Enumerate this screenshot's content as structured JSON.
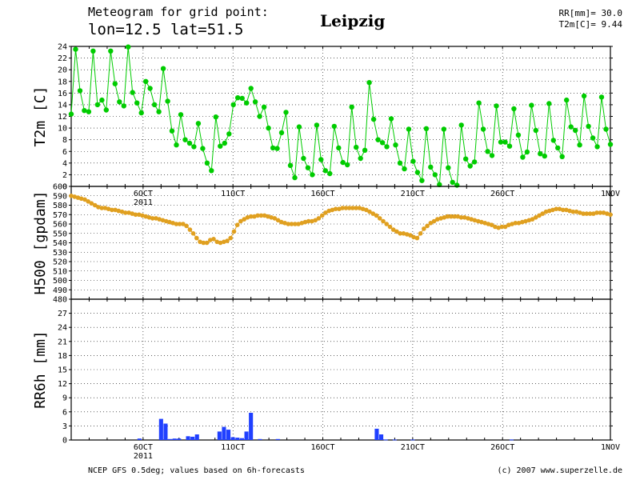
{
  "header": {
    "line1": "Meteogram for grid point:",
    "line2": "lon=12.5 lat=51.5",
    "location": "Leipzig",
    "rr_label": "RR[mm]= 30.0",
    "t2m_label": "T2m[C]= 9.44"
  },
  "footer": {
    "source": "NCEP GFS 0.5deg; values based on 6h-forecasts",
    "copyright": "(c) 2007 www.superzelle.de"
  },
  "colors": {
    "t2m": "#00cc00",
    "h500": "#e0a020",
    "rr6h": "#2040ff",
    "grid": "#000000"
  },
  "chart_data": [
    {
      "type": "line",
      "ylabel": "T2m [C]",
      "ylim": [
        0,
        24
      ],
      "yticks": [
        0,
        2,
        4,
        6,
        8,
        10,
        12,
        14,
        16,
        18,
        20,
        22,
        24
      ],
      "grid": true,
      "xlim": [
        0,
        30
      ],
      "xticks": [
        {
          "x": 4,
          "label": "6OCT",
          "sublabel": "2011"
        },
        {
          "x": 9,
          "label": "11OCT"
        },
        {
          "x": 14,
          "label": "16OCT"
        },
        {
          "x": 19,
          "label": "21OCT"
        },
        {
          "x": 24,
          "label": "26OCT"
        },
        {
          "x": 30,
          "label": "1NOV"
        }
      ],
      "series": [
        {
          "values": [
            12.4,
            23.5,
            16.4,
            13.0,
            12.8,
            23.2,
            14.0,
            14.8,
            13.1,
            23.2,
            17.6,
            14.5,
            13.8,
            23.9,
            16.1,
            14.3,
            12.6,
            18.0,
            16.8,
            14.0,
            12.8,
            20.2,
            14.6,
            9.5,
            7.1,
            12.3,
            8.0,
            7.4,
            6.8,
            10.8,
            6.5,
            4.0,
            2.7,
            11.9,
            6.9,
            7.4,
            9.0,
            14.0,
            15.2,
            15.1,
            14.3,
            16.8,
            14.5,
            12.0,
            13.6,
            10.0,
            6.6,
            6.5,
            9.2,
            12.7,
            3.6,
            1.5,
            10.2,
            4.8,
            3.2,
            2.0,
            10.5,
            4.6,
            2.7,
            2.2,
            10.3,
            6.6,
            4.1,
            3.7,
            13.6,
            6.7,
            4.8,
            6.2,
            17.8,
            11.5,
            8.0,
            7.5,
            6.8,
            11.6,
            7.1,
            4.0,
            3.0,
            9.8,
            4.3,
            2.4,
            1.0,
            9.9,
            3.3,
            2.0,
            0.3,
            9.8,
            3.2,
            0.7,
            0.2,
            10.5,
            4.7,
            3.5,
            4.2,
            14.3,
            9.8,
            6.0,
            5.3,
            13.8,
            7.6,
            7.6,
            6.9,
            13.3,
            8.8,
            5.0,
            5.9,
            13.9,
            9.6,
            5.6,
            5.2,
            14.2,
            7.9,
            6.6,
            5.1,
            14.8,
            10.2,
            9.6,
            7.1,
            15.5,
            10.3,
            8.3,
            6.8,
            15.3,
            9.8,
            7.2
          ]
        }
      ]
    },
    {
      "type": "line",
      "ylabel": "H500 [gpdam]",
      "ylim": [
        480,
        600
      ],
      "yticks": [
        480,
        490,
        500,
        510,
        520,
        530,
        540,
        550,
        560,
        570,
        580,
        590,
        600
      ],
      "grid": true,
      "xlim": [
        0,
        30
      ],
      "series": [
        {
          "values": [
            590,
            589,
            588,
            587,
            586,
            584,
            582,
            580,
            578,
            577,
            577,
            576,
            575,
            575,
            574,
            573,
            572,
            572,
            571,
            570,
            570,
            569,
            568,
            567,
            566,
            566,
            565,
            564,
            563,
            562,
            561,
            560,
            560,
            560,
            558,
            554,
            550,
            545,
            541,
            540,
            540,
            543,
            544,
            541,
            540,
            541,
            542,
            545,
            552,
            559,
            563,
            565,
            567,
            568,
            568,
            569,
            569,
            569,
            568,
            567,
            566,
            564,
            562,
            561,
            560,
            560,
            560,
            560,
            561,
            562,
            563,
            563,
            564,
            566,
            569,
            572,
            574,
            575,
            576,
            576,
            577,
            577,
            577,
            577,
            577,
            577,
            576,
            575,
            573,
            571,
            569,
            566,
            563,
            560,
            557,
            554,
            552,
            550,
            550,
            549,
            548,
            546,
            545,
            550,
            555,
            558,
            561,
            563,
            565,
            566,
            567,
            568,
            568,
            568,
            568,
            567,
            567,
            566,
            565,
            564,
            563,
            562,
            561,
            560,
            559,
            557,
            556,
            557,
            557,
            559,
            560,
            561,
            561,
            562,
            563,
            564,
            565,
            567,
            569,
            571,
            573,
            574,
            575,
            576,
            576,
            575,
            575,
            574,
            573,
            573,
            572,
            571,
            571,
            571,
            571,
            572,
            572,
            572,
            571,
            570
          ]
        }
      ]
    },
    {
      "type": "bar",
      "ylabel": "RR6h [mm]",
      "ylim": [
        0,
        30
      ],
      "yticks": [
        0,
        3,
        6,
        9,
        12,
        15,
        18,
        21,
        24,
        27
      ],
      "grid": true,
      "xlim": [
        0,
        30
      ],
      "xticks": [
        {
          "x": 4,
          "label": "6OCT",
          "sublabel": "2011"
        },
        {
          "x": 9,
          "label": "11OCT"
        },
        {
          "x": 14,
          "label": "16OCT"
        },
        {
          "x": 19,
          "label": "21OCT"
        },
        {
          "x": 24,
          "label": "26OCT"
        },
        {
          "x": 30,
          "label": "1NOV"
        }
      ],
      "series": [
        {
          "bars": [
            {
              "x": 3.8,
              "v": 0.3
            },
            {
              "x": 5.0,
              "v": 4.5
            },
            {
              "x": 5.25,
              "v": 3.5
            },
            {
              "x": 5.5,
              "v": 0.2
            },
            {
              "x": 5.75,
              "v": 0.3
            },
            {
              "x": 6.0,
              "v": 0.3
            },
            {
              "x": 6.5,
              "v": 0.8
            },
            {
              "x": 6.75,
              "v": 0.7
            },
            {
              "x": 7.0,
              "v": 1.2
            },
            {
              "x": 8.25,
              "v": 1.8
            },
            {
              "x": 8.5,
              "v": 2.8
            },
            {
              "x": 8.75,
              "v": 2.2
            },
            {
              "x": 9.0,
              "v": 0.6
            },
            {
              "x": 9.25,
              "v": 0.5
            },
            {
              "x": 9.5,
              "v": 0.4
            },
            {
              "x": 9.75,
              "v": 1.8
            },
            {
              "x": 10.0,
              "v": 5.8
            },
            {
              "x": 10.5,
              "v": 0.2
            },
            {
              "x": 11.5,
              "v": 0.2
            },
            {
              "x": 17.0,
              "v": 2.4
            },
            {
              "x": 17.25,
              "v": 1.2
            },
            {
              "x": 17.5,
              "v": 0.1
            },
            {
              "x": 18.0,
              "v": 0.1
            },
            {
              "x": 19.0,
              "v": 0.1
            },
            {
              "x": 24.5,
              "v": 0.1
            }
          ]
        }
      ]
    }
  ]
}
